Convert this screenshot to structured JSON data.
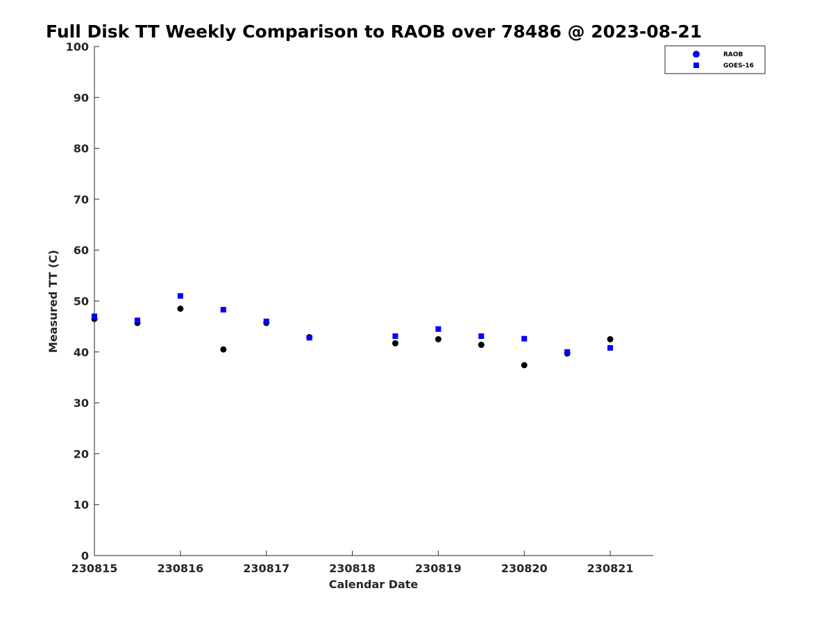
{
  "chart_data": {
    "type": "scatter",
    "title": "Full Disk TT Weekly Comparison to RAOB over 78486 @ 2023-08-21",
    "xlabel": "Calendar Date",
    "ylabel": "Measured TT (C)",
    "xlim": [
      "2023-08-15",
      "2023-08-21T12:00"
    ],
    "ylim": [
      0,
      100
    ],
    "x_ticks": [
      "230815",
      "230816",
      "230817",
      "230818",
      "230819",
      "230820",
      "230821"
    ],
    "y_ticks": [
      "0",
      "10",
      "20",
      "30",
      "40",
      "50",
      "60",
      "70",
      "80",
      "90",
      "100"
    ],
    "grid": false,
    "legend_position": "top-right",
    "series": [
      {
        "name": "RAOB",
        "marker": "circle",
        "color": "#000000",
        "legend_color": "#0000ff",
        "x": [
          "2023-08-15T00:00",
          "2023-08-15T12:00",
          "2023-08-16T00:00",
          "2023-08-16T12:00",
          "2023-08-17T00:00",
          "2023-08-17T12:00",
          "2023-08-18T12:00",
          "2023-08-19T00:00",
          "2023-08-19T12:00",
          "2023-08-20T00:00",
          "2023-08-20T12:00",
          "2023-08-21T00:00"
        ],
        "y": [
          46.5,
          45.7,
          48.5,
          40.5,
          45.7,
          42.9,
          41.7,
          42.5,
          41.4,
          37.4,
          39.7,
          42.5
        ]
      },
      {
        "name": "GOES-16",
        "marker": "square",
        "color": "#0000ff",
        "legend_color": "#0000ff",
        "x": [
          "2023-08-15T00:00",
          "2023-08-15T12:00",
          "2023-08-16T00:00",
          "2023-08-16T12:00",
          "2023-08-17T00:00",
          "2023-08-17T12:00",
          "2023-08-18T12:00",
          "2023-08-19T00:00",
          "2023-08-19T12:00",
          "2023-08-20T00:00",
          "2023-08-20T12:00",
          "2023-08-21T00:00"
        ],
        "y": [
          47.0,
          46.2,
          51.0,
          48.3,
          46.0,
          42.8,
          43.1,
          44.5,
          43.1,
          42.6,
          40.0,
          40.8
        ]
      }
    ]
  }
}
